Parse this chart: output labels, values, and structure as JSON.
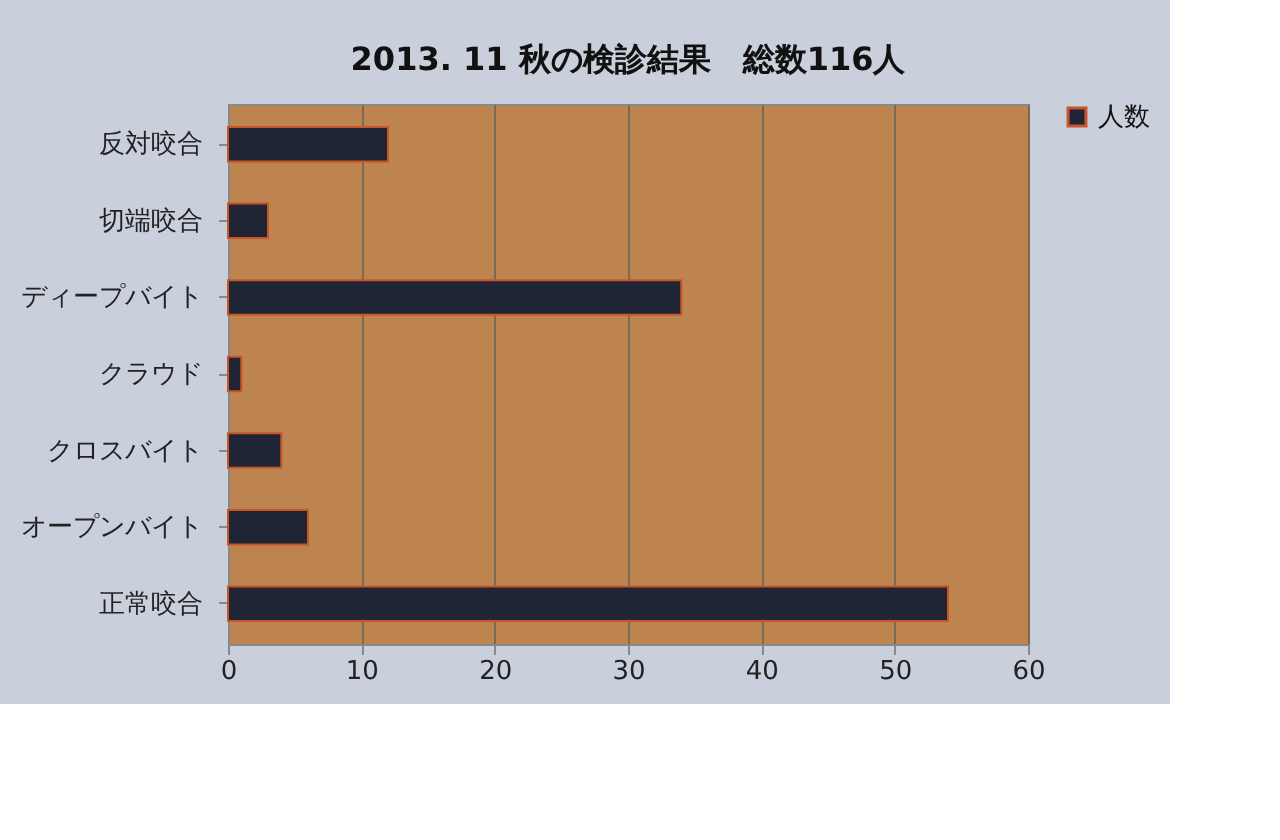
{
  "chart_data": {
    "type": "bar",
    "orientation": "horizontal",
    "title": "2013. 11 秋の検診結果　総数116人",
    "categories": [
      "反対咬合",
      "切端咬合",
      "ディープバイト",
      "クラウド",
      "クロスバイト",
      "オープンバイト",
      "正常咬合"
    ],
    "series": [
      {
        "name": "人数",
        "color": "#1f2535",
        "values": [
          12,
          3,
          34,
          1,
          4,
          6,
          54
        ]
      }
    ],
    "xlim": [
      0,
      60
    ],
    "xticks": [
      0,
      10,
      20,
      30,
      40,
      50,
      60
    ],
    "grid": "x",
    "legend": "right"
  }
}
